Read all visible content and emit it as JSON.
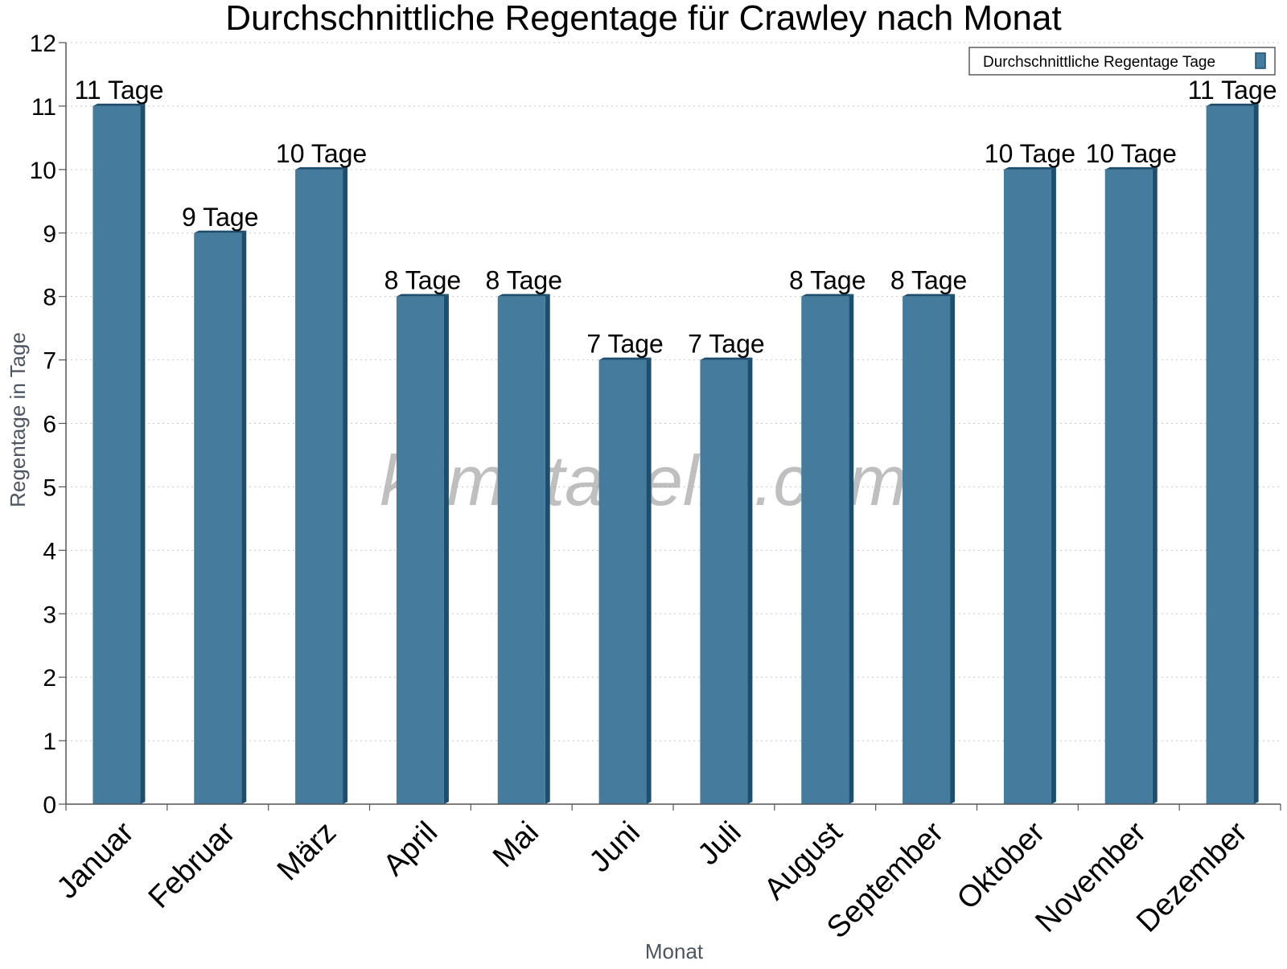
{
  "chart_data": {
    "type": "bar",
    "title": "Durchschnittliche Regentage für Crawley nach Monat",
    "xlabel": "Monat",
    "ylabel": "Regentage in Tage",
    "ylim": [
      0,
      12
    ],
    "yticks": [
      0,
      1,
      2,
      3,
      4,
      5,
      6,
      7,
      8,
      9,
      10,
      11,
      12
    ],
    "grid": "horizontal dotted",
    "categories": [
      "Januar",
      "Februar",
      "März",
      "April",
      "Mai",
      "Juni",
      "Juli",
      "August",
      "September",
      "Oktober",
      "November",
      "Dezember"
    ],
    "series": [
      {
        "name": "Durchschnittliche Regentage Tage",
        "values": [
          11,
          9,
          10,
          8,
          8,
          7,
          7,
          8,
          8,
          10,
          10,
          11
        ],
        "labels": [
          "11 Tage",
          "9 Tage",
          "10 Tage",
          "8 Tage",
          "8 Tage",
          "7 Tage",
          "7 Tage",
          "8 Tage",
          "8 Tage",
          "10 Tage",
          "10 Tage",
          "11 Tage"
        ]
      }
    ],
    "legend": {
      "placement": "top-right"
    },
    "watermark": "klimatabelle.com",
    "colors": {
      "bar": "#457b9d",
      "bar_side": "#1d4e6e",
      "grid": "#c8c8c8",
      "axis": "#555555"
    }
  }
}
